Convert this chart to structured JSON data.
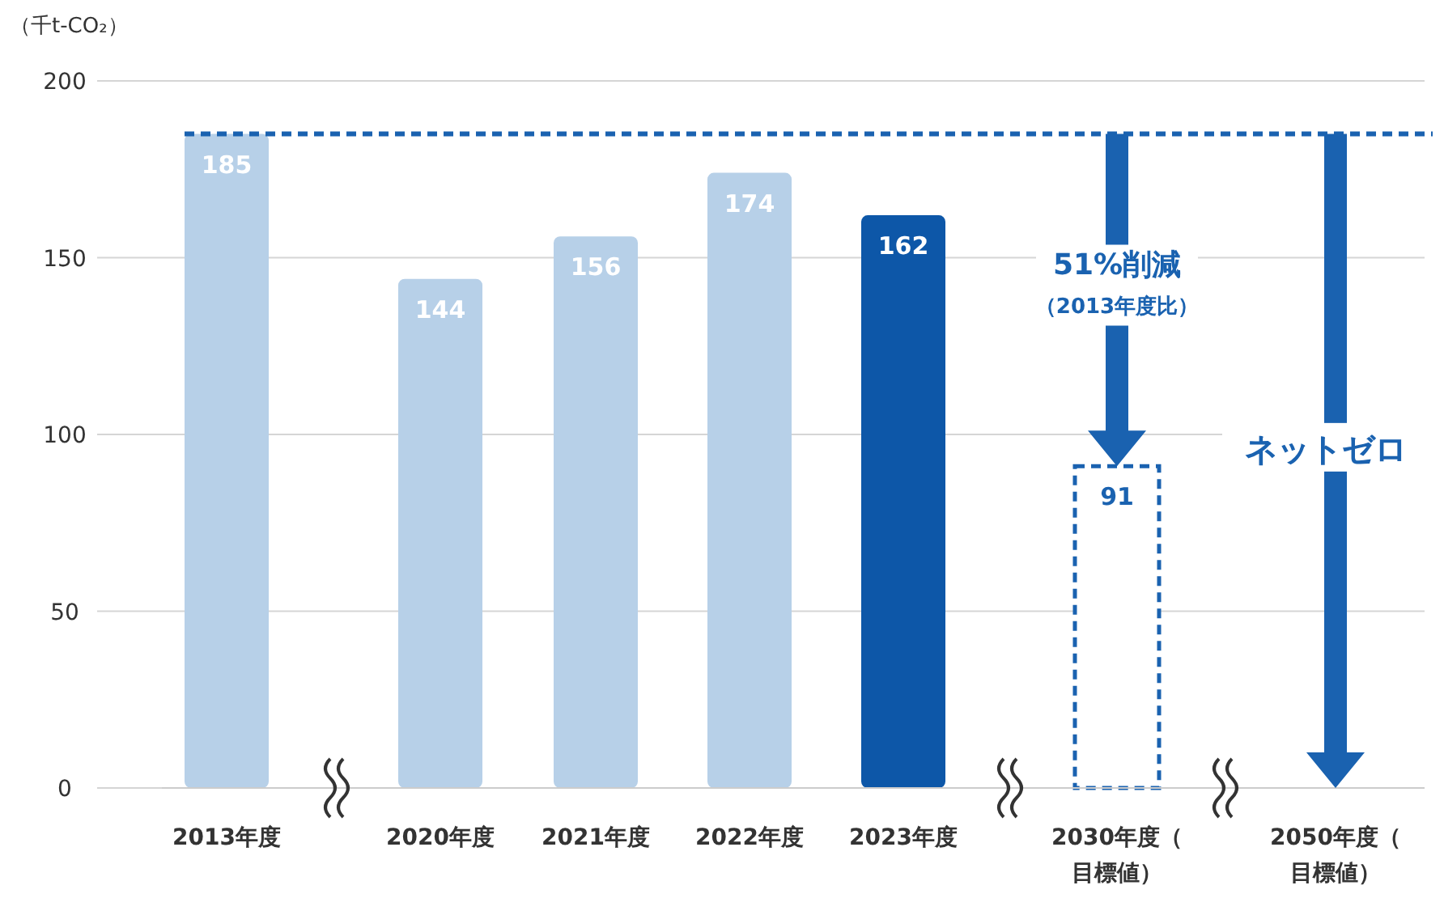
{
  "chart_data": {
    "type": "bar",
    "ylabel": "（千t-CO₂）",
    "categories": [
      "2013年度",
      "2020年度",
      "2021年度",
      "2022年度",
      "2023年度",
      "2030年度（目標値）",
      "2050年度（目標値）"
    ],
    "series": [
      {
        "type": "bar",
        "colors": [
          "#b7d0e8",
          "#b7d0e8",
          "#b7d0e8",
          "#b7d0e8",
          "#0d57a8",
          null,
          null
        ],
        "values": [
          185,
          144,
          156,
          174,
          162,
          null,
          null
        ]
      },
      {
        "type": "bar",
        "color": "#1a62b0",
        "line_style": "dashed",
        "values": [
          null,
          null,
          null,
          null,
          null,
          91,
          null
        ]
      }
    ],
    "ylim": [
      0,
      200
    ],
    "yticks": [
      0,
      50,
      100,
      150,
      200
    ],
    "grid": "y",
    "data_labels": true,
    "ref_lines": [
      {
        "axis": "y",
        "value": 185,
        "color": "#1a62b0",
        "line_style": "dashed"
      }
    ],
    "annotations": [
      "51%削減",
      "（2013年度比）",
      "ネットゼロ"
    ]
  }
}
